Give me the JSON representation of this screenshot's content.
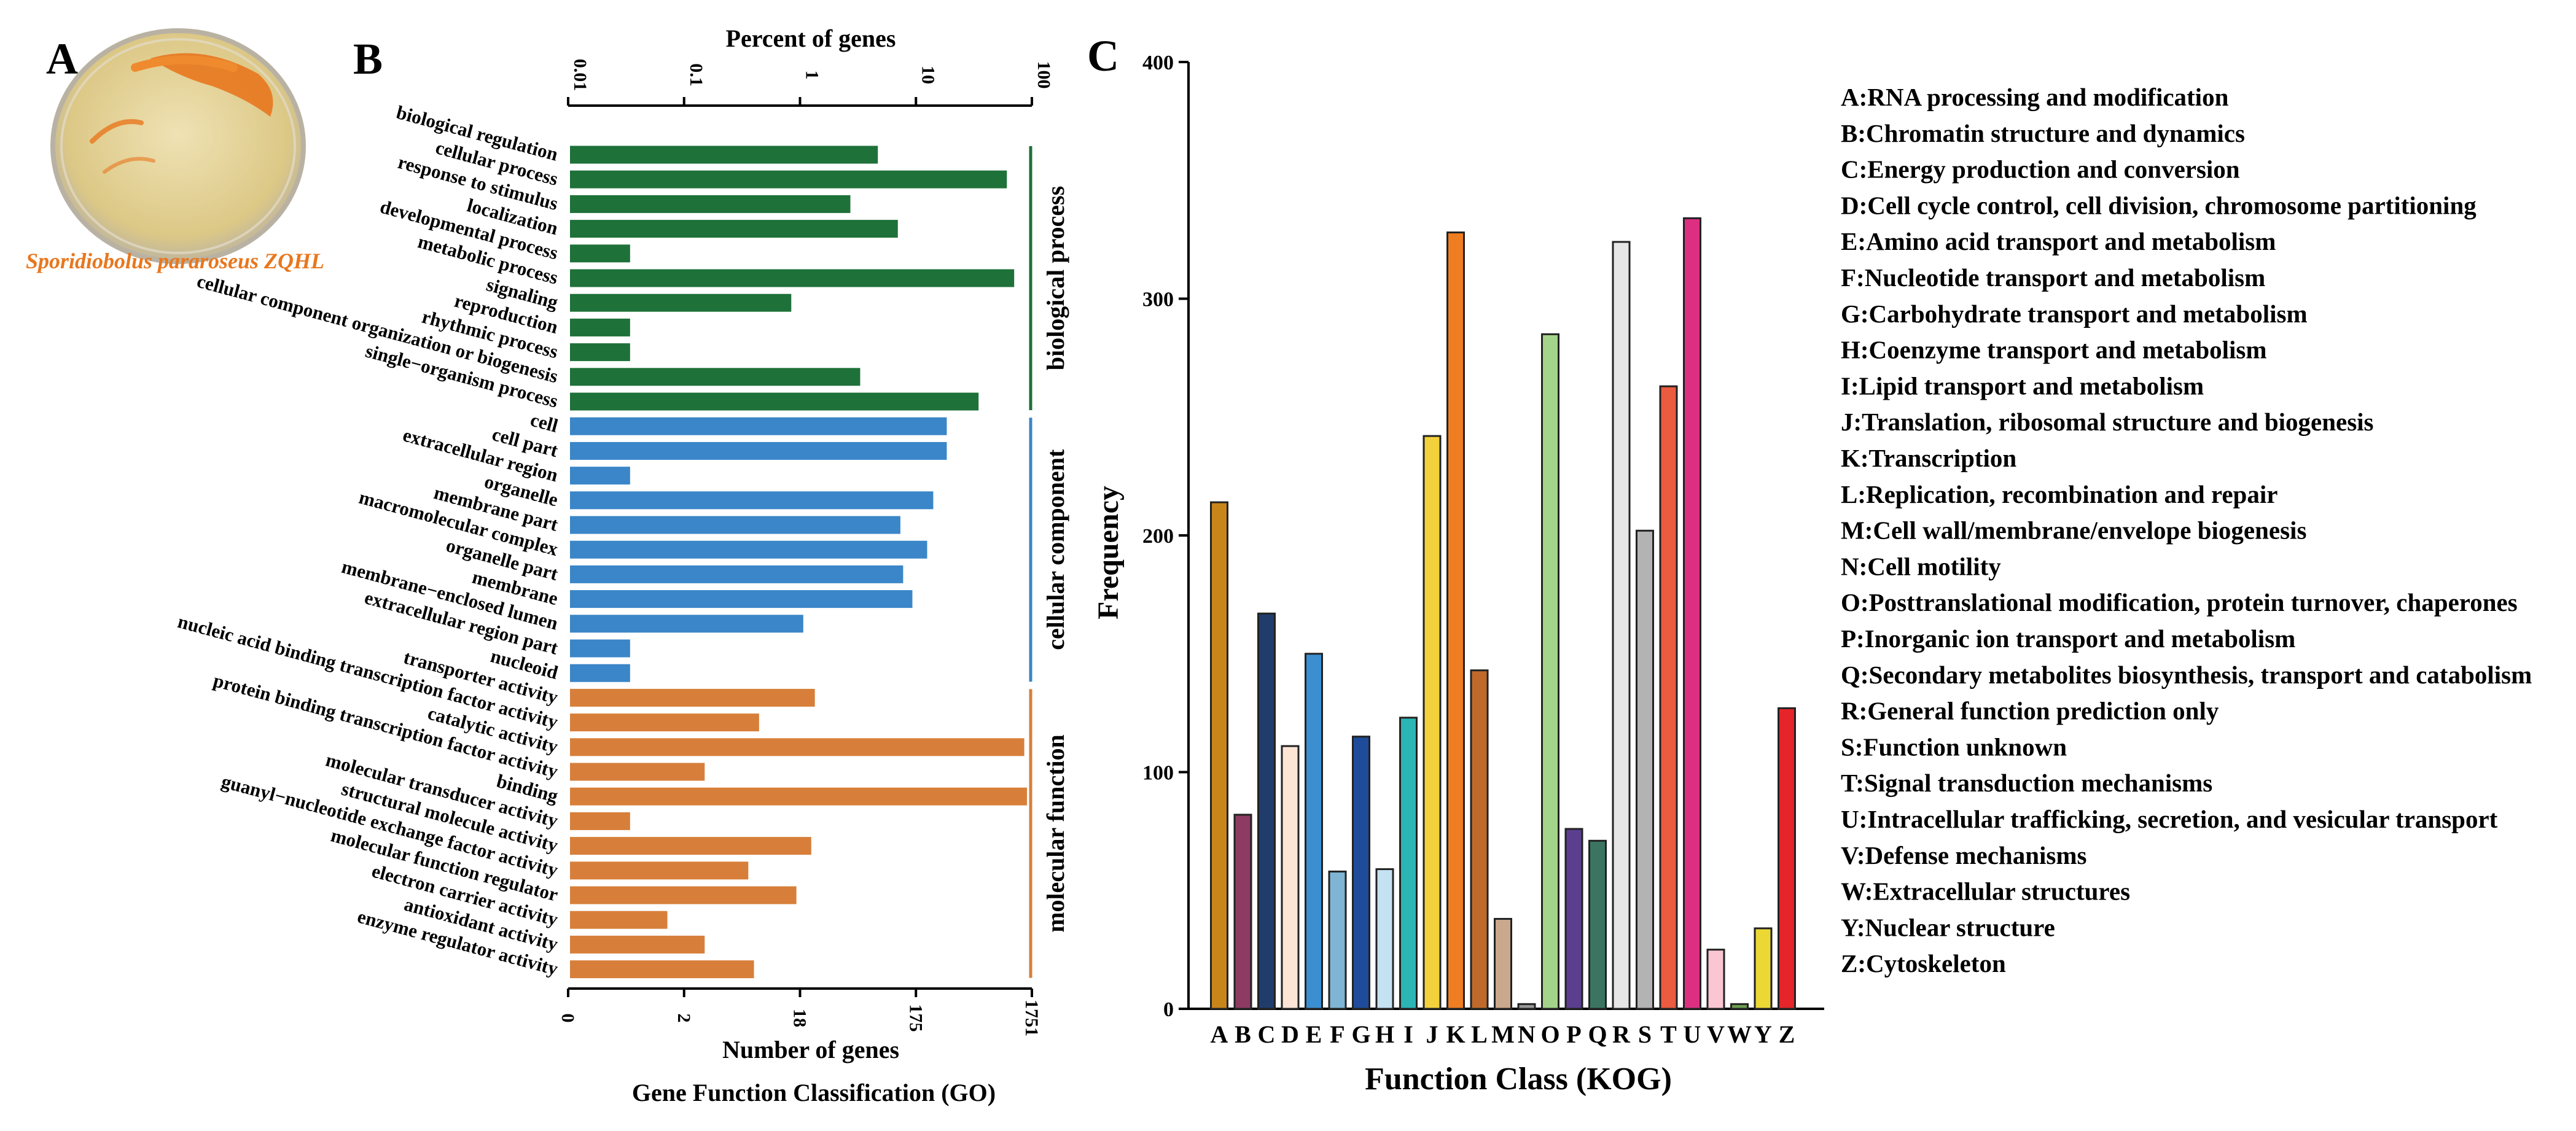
{
  "panel_a": {
    "letter": "A",
    "caption": "Sporidiobolus pararoseus ZQHL",
    "colors": {
      "dish": "#e7d7a0",
      "rim": "#c9c2b2",
      "colony": "#e8771e",
      "caption": "#e8771e"
    }
  },
  "chart_data": [
    {
      "id": "go",
      "type": "bar",
      "orientation": "horizontal",
      "letter": "B",
      "title": "Gene Function Classification (GO)",
      "xlabel": "Number of genes",
      "top_axis_label": "Percent of genes",
      "bottom_ticks": [
        "0",
        "2",
        "18",
        "175",
        "1751"
      ],
      "top_ticks": [
        "0.01",
        "0.1",
        "1",
        "10",
        "100"
      ],
      "scale": "log",
      "xlim": [
        0,
        1751
      ],
      "groups": [
        {
          "name": "biological process",
          "color": "#1e7139",
          "terms": [
            "biological regulation",
            "cellular process",
            "response to stimulus",
            "localization",
            "developmental process",
            "metabolic process",
            "signaling",
            "reproduction",
            "rhythmic process",
            "cellular component organization or biogenesis",
            "single−organism process"
          ],
          "values": [
            100,
            1100,
            60,
            145,
            1,
            1260,
            20,
            1,
            1,
            72,
            650
          ]
        },
        {
          "name": "cellular component",
          "color": "#3a86c8",
          "terms": [
            "cell",
            "cell part",
            "extracellular region",
            "organelle",
            "membrane part",
            "macromolecular complex",
            "organelle part",
            "membrane",
            "membrane−enclosed lumen",
            "extracellular region part",
            "nucleoid"
          ],
          "values": [
            360,
            360,
            1,
            280,
            152,
            250,
            160,
            190,
            25,
            1,
            1
          ]
        },
        {
          "name": "molecular function",
          "color": "#d77f3a",
          "terms": [
            "transporter activity",
            "nucleic acid binding transcription factor activity",
            "catalytic activity",
            "protein binding transcription factor activity",
            "binding",
            "molecular transducer activity",
            "structural molecule activity",
            "guanyl−nucleotide exchange factor activity",
            "molecular function regulator",
            "electron carrier activity",
            "antioxidant activity",
            "enzyme regulator activity"
          ],
          "values": [
            31,
            11,
            1520,
            4,
            1600,
            1,
            29,
            9,
            22,
            2,
            4,
            10
          ]
        }
      ]
    },
    {
      "id": "kog",
      "type": "bar",
      "letter": "C",
      "xlabel": "Function Class (KOG)",
      "ylabel": "Frequency",
      "ylim": [
        0,
        400
      ],
      "yticks": [
        "0",
        "100",
        "200",
        "300",
        "400"
      ],
      "categories": [
        "A",
        "B",
        "C",
        "D",
        "E",
        "F",
        "G",
        "H",
        "I",
        "J",
        "K",
        "L",
        "M",
        "N",
        "O",
        "P",
        "Q",
        "R",
        "S",
        "T",
        "U",
        "V",
        "W",
        "Y",
        "Z"
      ],
      "values": [
        214,
        82,
        167,
        111,
        150,
        58,
        115,
        59,
        123,
        242,
        328,
        143,
        38,
        2,
        285,
        76,
        71,
        324,
        202,
        263,
        334,
        25,
        2,
        34,
        127
      ],
      "colors": [
        "#c8861a",
        "#8d3b62",
        "#1f3c6b",
        "#fde5d6",
        "#3b8ed0",
        "#7fb4d4",
        "#1f4c9a",
        "#c5e2f2",
        "#2bb5b4",
        "#f2d13c",
        "#ef7d22",
        "#bf6a2a",
        "#c9a88c",
        "#999999",
        "#a4d48a",
        "#5b3f8e",
        "#3b7561",
        "#e6e6e6",
        "#b3b3b3",
        "#ea5b3f",
        "#dd2f82",
        "#f9c6d2",
        "#6e9f50",
        "#ecd834",
        "#e5252a"
      ],
      "legend": [
        "A:RNA processing and modification",
        "B:Chromatin structure and dynamics",
        "C:Energy production and conversion",
        "D:Cell cycle control, cell division, chromosome partitioning",
        "E:Amino acid transport and metabolism",
        "F:Nucleotide transport and metabolism",
        "G:Carbohydrate transport and metabolism",
        "H:Coenzyme transport and metabolism",
        "I:Lipid transport and metabolism",
        "J:Translation, ribosomal structure and biogenesis",
        "K:Transcription",
        "L:Replication, recombination and repair",
        "M:Cell wall/membrane/envelope biogenesis",
        "N:Cell motility",
        "O:Posttranslational modification, protein turnover, chaperones",
        "P:Inorganic ion transport and metabolism",
        "Q:Secondary metabolites biosynthesis, transport and catabolism",
        "R:General function prediction only",
        "S:Function unknown",
        "T:Signal transduction mechanisms",
        "U:Intracellular trafficking, secretion, and vesicular transport",
        "V:Defense mechanisms",
        "W:Extracellular structures",
        "Y:Nuclear structure",
        "Z:Cytoskeleton"
      ]
    }
  ]
}
